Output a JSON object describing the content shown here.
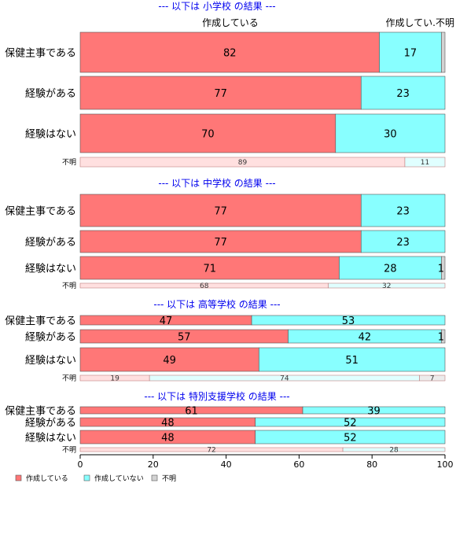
{
  "chart_data": {
    "type": "bar",
    "orientation": "horizontal",
    "stacked": true,
    "top_labels": [
      "作成している",
      "作成してい.不明"
    ],
    "xlim": [
      0,
      100
    ],
    "xticks": [
      0,
      20,
      40,
      60,
      80,
      100
    ],
    "grid": false,
    "legend_position": "bottom-left",
    "series": [
      {
        "name": "作成している",
        "color": "#ff7777"
      },
      {
        "name": "作成していない",
        "color": "#88ffff"
      },
      {
        "name": "不明",
        "color": "#d3d3d3"
      }
    ],
    "panels": [
      {
        "header": "--- 以下は 小学校 の結果 ---",
        "rows": [
          {
            "label": "保健主事である",
            "values": [
              82,
              17,
              1
            ],
            "labels": [
              "82",
              "17",
              ""
            ]
          },
          {
            "label": "経験がある",
            "values": [
              77,
              23,
              0
            ],
            "labels": [
              "77",
              "23",
              ""
            ]
          },
          {
            "label": "経験はない",
            "values": [
              70,
              30,
              0
            ],
            "labels": [
              "70",
              "30",
              ""
            ]
          },
          {
            "label": "不明",
            "small": true,
            "values": [
              89,
              11,
              0
            ],
            "labels": [
              "89",
              "11",
              ""
            ]
          }
        ]
      },
      {
        "header": "--- 以下は 中学校 の結果 ---",
        "rows": [
          {
            "label": "保健主事である",
            "values": [
              77,
              23,
              0
            ],
            "labels": [
              "77",
              "23",
              ""
            ]
          },
          {
            "label": "経験がある",
            "values": [
              77,
              23,
              0
            ],
            "labels": [
              "77",
              "23",
              ""
            ]
          },
          {
            "label": "経験はない",
            "values": [
              71,
              28,
              1
            ],
            "labels": [
              "71",
              "28",
              "1"
            ]
          },
          {
            "label": "不明",
            "small": true,
            "values": [
              68,
              32,
              0
            ],
            "labels": [
              "68",
              "32",
              ""
            ]
          }
        ]
      },
      {
        "header": "--- 以下は 高等学校 の結果 ---",
        "rows": [
          {
            "label": "保健主事である",
            "values": [
              47,
              53,
              0
            ],
            "labels": [
              "47",
              "53",
              ""
            ]
          },
          {
            "label": "経験がある",
            "values": [
              57,
              42,
              1
            ],
            "labels": [
              "57",
              "42",
              "1"
            ]
          },
          {
            "label": "経験はない",
            "values": [
              49,
              51,
              0
            ],
            "labels": [
              "49",
              "51",
              ""
            ]
          },
          {
            "label": "不明",
            "small": true,
            "values": [
              19,
              74,
              7
            ],
            "labels": [
              "19",
              "74",
              "7"
            ]
          }
        ]
      },
      {
        "header": "--- 以下は 特別支援学校 の結果 ---",
        "rows": [
          {
            "label": "保健主事である",
            "values": [
              61,
              39,
              0
            ],
            "labels": [
              "61",
              "39",
              ""
            ]
          },
          {
            "label": "経験がある",
            "values": [
              48,
              52,
              0
            ],
            "labels": [
              "48",
              "52",
              ""
            ]
          },
          {
            "label": "経験はない",
            "values": [
              48,
              52,
              0
            ],
            "labels": [
              "48",
              "52",
              ""
            ]
          },
          {
            "label": "不明",
            "small": true,
            "values": [
              72,
              28,
              0
            ],
            "labels": [
              "72",
              "28",
              ""
            ]
          }
        ]
      }
    ]
  }
}
